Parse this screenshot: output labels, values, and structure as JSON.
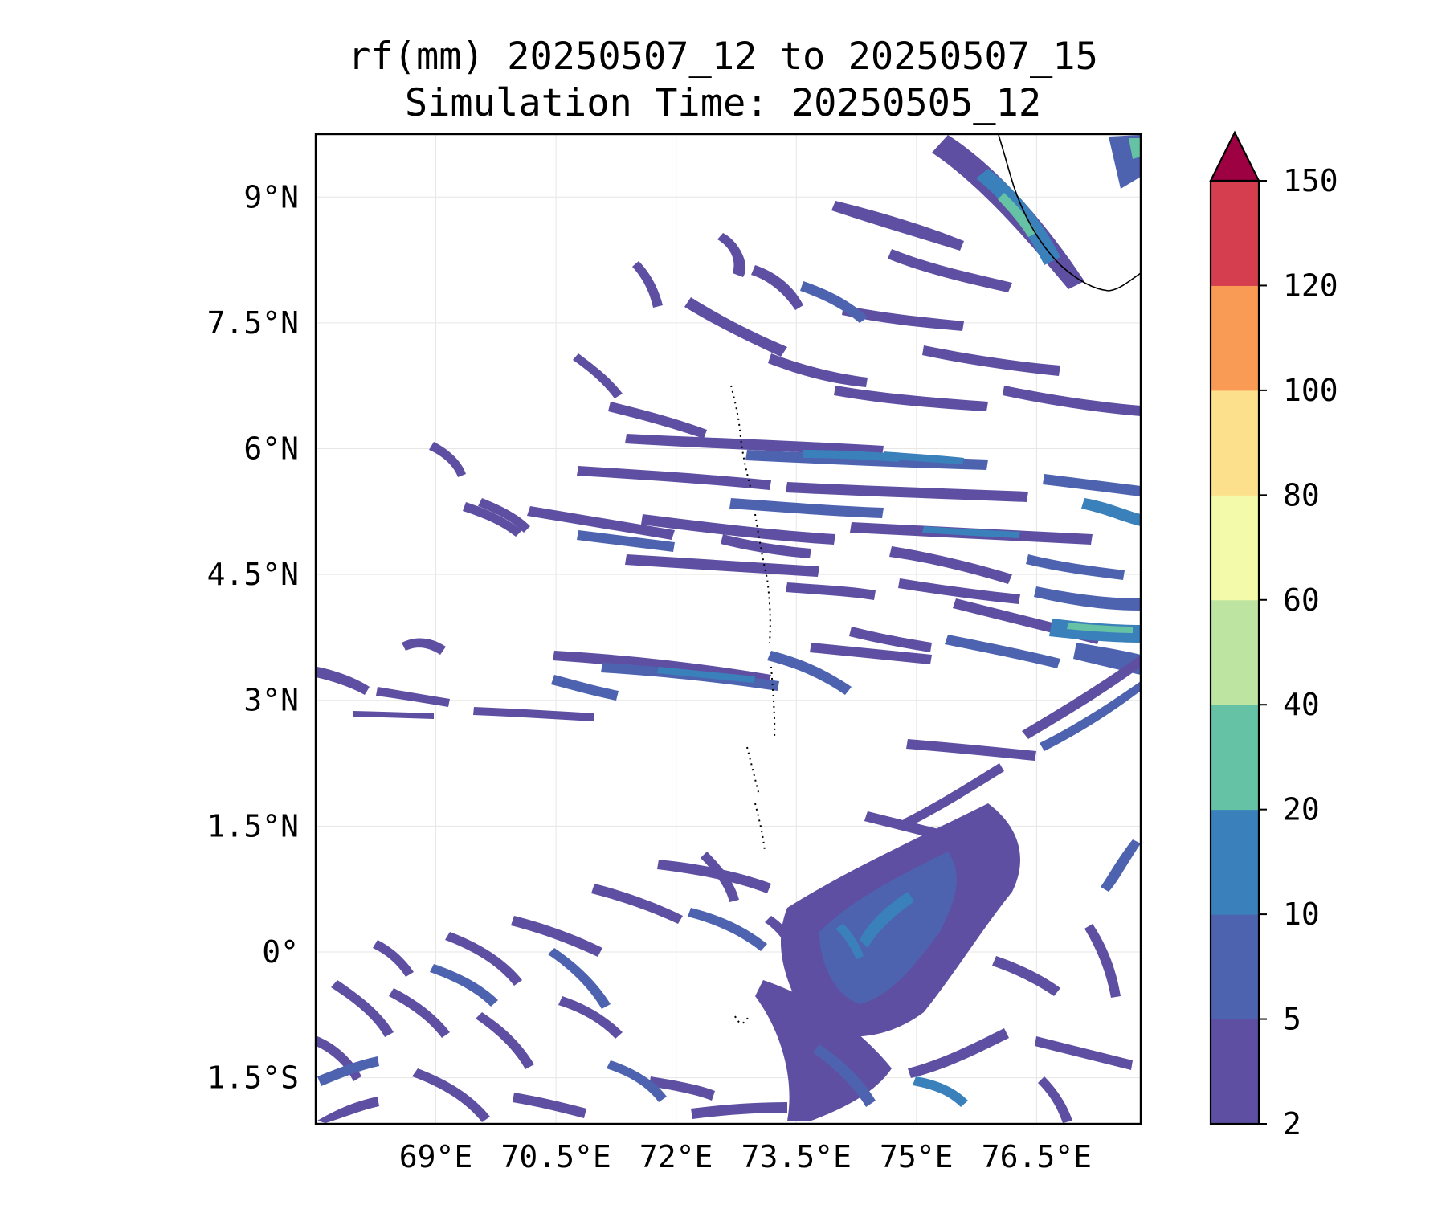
{
  "title_line1": "rf(mm) 20250507_12 to 20250507_15",
  "title_line2": "Simulation Time: 20250505_12",
  "map": {
    "lon_range": [
      67.5,
      77.8
    ],
    "lat_range": [
      -2.05,
      9.75
    ],
    "lon_ticks": [
      {
        "value": 69,
        "label": "69°E"
      },
      {
        "value": 70.5,
        "label": "70.5°E"
      },
      {
        "value": 72,
        "label": "72°E"
      },
      {
        "value": 73.5,
        "label": "73.5°E"
      },
      {
        "value": 75,
        "label": "75°E"
      },
      {
        "value": 76.5,
        "label": "76.5°E"
      }
    ],
    "lat_ticks": [
      {
        "value": 9,
        "label": "9°N"
      },
      {
        "value": 7.5,
        "label": "7.5°N"
      },
      {
        "value": 6,
        "label": "6°N"
      },
      {
        "value": 4.5,
        "label": "4.5°N"
      },
      {
        "value": 3,
        "label": "3°N"
      },
      {
        "value": 1.5,
        "label": "1.5°N"
      },
      {
        "value": 0,
        "label": "0°"
      },
      {
        "value": -1.5,
        "label": "1.5°S"
      }
    ],
    "gridlines": true,
    "coastline_color": "#000000"
  },
  "colorbar": {
    "levels": [
      {
        "value": 2,
        "label": "2"
      },
      {
        "value": 5,
        "label": "5"
      },
      {
        "value": 10,
        "label": "10"
      },
      {
        "value": 20,
        "label": "20"
      },
      {
        "value": 40,
        "label": "40"
      },
      {
        "value": 60,
        "label": "60"
      },
      {
        "value": 80,
        "label": "80"
      },
      {
        "value": 100,
        "label": "100"
      },
      {
        "value": 120,
        "label": "120"
      },
      {
        "value": 150,
        "label": "150"
      }
    ],
    "colors": [
      "#5e4fa2",
      "#4e63b0",
      "#3a80ba",
      "#66c2a5",
      "#bde4a0",
      "#f3fbaa",
      "#fde08b",
      "#f99a55",
      "#d53e4f"
    ],
    "extend_color": "#9e0142",
    "extend": "max"
  }
}
